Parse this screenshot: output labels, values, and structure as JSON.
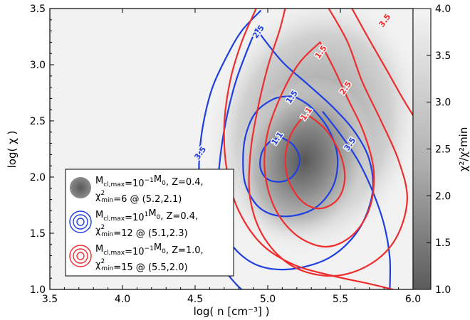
{
  "chart_data": {
    "type": "contour",
    "xlabel": "log( n [cm⁻³] )",
    "ylabel": "log( χ )",
    "colorbar_label": "χ²/χ²min",
    "xlim": [
      3.5,
      6.0
    ],
    "ylim": [
      1.0,
      3.5
    ],
    "colorbar_lim": [
      1.0,
      4.0
    ],
    "x_ticks": [
      "3.5",
      "4.0",
      "4.5",
      "5.0",
      "5.5",
      "6.0"
    ],
    "y_ticks": [
      "1.0",
      "1.5",
      "2.0",
      "2.5",
      "3.0",
      "3.5"
    ],
    "colorbar_ticks": [
      "1.0",
      "1.5",
      "2.0",
      "2.5",
      "3.0",
      "3.5",
      "4.0"
    ],
    "colors": {
      "blue": "#1f3fe0",
      "red": "#ee2e2e"
    },
    "filled_model": {
      "legend": {
        "line1": "M",
        "sub1": "cl,max",
        "text1": "=10",
        "sup1": "−1",
        "text1b": "M",
        "sub1b": "0",
        "text1c": ",  Z=0.4,",
        "line2": "χ",
        "sup2": "2",
        "sub2": "min",
        "text2": "=6 @ (5.2,2.1)"
      },
      "minimum": [
        5.2,
        2.1
      ]
    },
    "series": [
      {
        "name_line1": "=10¹M₀,  Z=0.4,",
        "name_line2": "=12 @ (5.1,2.3)",
        "color": "#1f3fe0",
        "levels": [
          {
            "level": "1.1",
            "label": "1.1",
            "label_pos": [
              5.08,
              2.33
            ],
            "points": [
              [
                5.1,
                2.35
              ],
              [
                5.18,
                2.28
              ],
              [
                5.22,
                2.15
              ],
              [
                5.18,
                2.02
              ],
              [
                5.1,
                1.96
              ],
              [
                5.0,
                1.98
              ],
              [
                4.95,
                2.08
              ],
              [
                4.96,
                2.22
              ],
              [
                5.02,
                2.32
              ],
              [
                5.1,
                2.35
              ]
            ]
          },
          {
            "level": "1.5",
            "label": "1.5",
            "label_pos": [
              5.18,
              2.7
            ],
            "points": [
              [
                5.18,
                2.72
              ],
              [
                5.3,
                2.62
              ],
              [
                5.42,
                2.42
              ],
              [
                5.48,
                2.18
              ],
              [
                5.45,
                1.92
              ],
              [
                5.32,
                1.72
              ],
              [
                5.12,
                1.65
              ],
              [
                4.95,
                1.72
              ],
              [
                4.85,
                1.92
              ],
              [
                4.83,
                2.15
              ],
              [
                4.85,
                2.38
              ],
              [
                4.92,
                2.58
              ],
              [
                5.05,
                2.7
              ],
              [
                5.18,
                2.72
              ]
            ]
          },
          {
            "level": "2.5",
            "label": "2.5",
            "label_pos": [
              4.95,
              3.28
            ],
            "points": [
              [
                4.92,
                3.32
              ],
              [
                5.02,
                3.15
              ],
              [
                5.12,
                3.0
              ],
              [
                5.28,
                2.82
              ],
              [
                5.45,
                2.62
              ],
              [
                5.6,
                2.4
              ],
              [
                5.7,
                2.15
              ],
              [
                5.72,
                1.85
              ],
              [
                5.62,
                1.52
              ],
              [
                5.42,
                1.28
              ],
              [
                5.15,
                1.18
              ],
              [
                4.92,
                1.22
              ],
              [
                4.75,
                1.4
              ],
              [
                4.68,
                1.65
              ],
              [
                4.66,
                1.95
              ],
              [
                4.68,
                2.25
              ],
              [
                4.72,
                2.55
              ],
              [
                4.78,
                2.85
              ],
              [
                4.85,
                3.1
              ],
              [
                4.92,
                3.32
              ]
            ]
          },
          {
            "level": "3.5",
            "label": "3.5",
            "label_pos": [
              4.55,
              2.2
            ],
            "points": [
              [
                4.95,
                3.48
              ],
              [
                4.82,
                3.3
              ],
              [
                4.72,
                3.08
              ],
              [
                4.62,
                2.8
              ],
              [
                4.56,
                2.5
              ],
              [
                4.53,
                2.2
              ],
              [
                4.53,
                1.9
              ],
              [
                4.56,
                1.62
              ],
              [
                4.62,
                1.38
              ],
              [
                4.7,
                1.18
              ],
              [
                4.78,
                1.05
              ],
              [
                4.82,
                1.0
              ]
            ],
            "points2": [
              [
                5.38,
                2.58
              ],
              [
                5.5,
                2.38
              ],
              [
                5.62,
                2.15
              ],
              [
                5.72,
                1.88
              ],
              [
                5.8,
                1.58
              ],
              [
                5.84,
                1.28
              ],
              [
                5.84,
                1.0
              ]
            ],
            "label2": "3.5",
            "label2_pos": [
              5.58,
              2.28
            ]
          }
        ]
      },
      {
        "name_line1": "=10⁻¹M₀,  Z=1.0,",
        "name_line2": "=15 @ (5.5,2.0)",
        "color": "#ee2e2e",
        "levels": [
          {
            "level": "1.1",
            "label": "1.1",
            "label_pos": [
              5.28,
              2.55
            ],
            "points": [
              [
                5.28,
                2.55
              ],
              [
                5.4,
                2.42
              ],
              [
                5.5,
                2.2
              ],
              [
                5.53,
                1.98
              ],
              [
                5.48,
                1.8
              ],
              [
                5.36,
                1.72
              ],
              [
                5.24,
                1.78
              ],
              [
                5.15,
                1.95
              ],
              [
                5.12,
                2.15
              ],
              [
                5.15,
                2.35
              ],
              [
                5.22,
                2.5
              ],
              [
                5.28,
                2.55
              ]
            ]
          },
          {
            "level": "1.5",
            "label": "1.5",
            "label_pos": [
              5.38,
              3.1
            ],
            "points": [
              [
                5.36,
                3.2
              ],
              [
                5.45,
                2.98
              ],
              [
                5.55,
                2.7
              ],
              [
                5.66,
                2.4
              ],
              [
                5.73,
                2.05
              ],
              [
                5.7,
                1.72
              ],
              [
                5.58,
                1.48
              ],
              [
                5.4,
                1.38
              ],
              [
                5.2,
                1.48
              ],
              [
                5.05,
                1.72
              ],
              [
                4.98,
                2.05
              ],
              [
                5.0,
                2.4
              ],
              [
                5.1,
                2.75
              ],
              [
                5.22,
                3.02
              ],
              [
                5.36,
                3.2
              ]
            ]
          },
          {
            "level": "2.5",
            "label": "2.5",
            "label_pos": [
              5.55,
              2.78
            ],
            "points": [
              [
                5.42,
                3.5
              ],
              [
                5.55,
                3.2
              ],
              [
                5.65,
                2.85
              ],
              [
                5.78,
                2.5
              ],
              [
                5.9,
                2.15
              ],
              [
                5.96,
                1.8
              ],
              [
                5.88,
                1.45
              ],
              [
                5.7,
                1.22
              ],
              [
                5.45,
                1.12
              ],
              [
                5.18,
                1.2
              ],
              [
                4.98,
                1.45
              ],
              [
                4.88,
                1.8
              ],
              [
                4.88,
                2.2
              ],
              [
                4.93,
                2.6
              ],
              [
                5.0,
                2.98
              ],
              [
                5.08,
                3.3
              ],
              [
                5.12,
                3.5
              ]
            ]
          },
          {
            "level": "3.5",
            "label": "3.5",
            "label_pos": [
              5.82,
              3.38
            ],
            "points": [
              [
                5.58,
                3.5
              ],
              [
                5.7,
                3.22
              ],
              [
                5.82,
                2.95
              ],
              [
                5.92,
                2.72
              ],
              [
                6.0,
                2.55
              ]
            ],
            "points2": [
              [
                4.92,
                3.5
              ],
              [
                4.82,
                3.2
              ],
              [
                4.74,
                2.85
              ],
              [
                4.7,
                2.45
              ],
              [
                4.72,
                2.05
              ],
              [
                4.8,
                1.7
              ],
              [
                4.96,
                1.4
              ],
              [
                5.18,
                1.22
              ],
              [
                5.45,
                1.12
              ],
              [
                5.7,
                1.05
              ],
              [
                5.86,
                1.0
              ]
            ]
          }
        ]
      }
    ],
    "legend_entries": [
      {
        "m_prefix": "M",
        "m_sub": "cl,max",
        "m_value": "=10",
        "m_exp": "−1",
        "m_unit": "M",
        "m_unit_sub": "0",
        "z_text": ",  Z=0.4,",
        "chi": "χ",
        "chi_sup": "2",
        "chi_sub": "min",
        "chi_text": "=6 @ (5.2,2.1)",
        "style": "filled"
      },
      {
        "m_prefix": "M",
        "m_sub": "cl,max",
        "m_value": "=10",
        "m_exp": "1",
        "m_unit": "M",
        "m_unit_sub": "0",
        "z_text": ",  Z=0.4,",
        "chi": "χ",
        "chi_sup": "2",
        "chi_sub": "min",
        "chi_text": "=12 @ (5.1,2.3)",
        "style": "blue"
      },
      {
        "m_prefix": "M",
        "m_sub": "cl,max",
        "m_value": "=10",
        "m_exp": "−1",
        "m_unit": "M",
        "m_unit_sub": "0",
        "z_text": ",  Z=1.0,",
        "chi": "χ",
        "chi_sup": "2",
        "chi_sub": "min",
        "chi_text": "=15 @ (5.5,2.0)",
        "style": "red"
      }
    ]
  }
}
